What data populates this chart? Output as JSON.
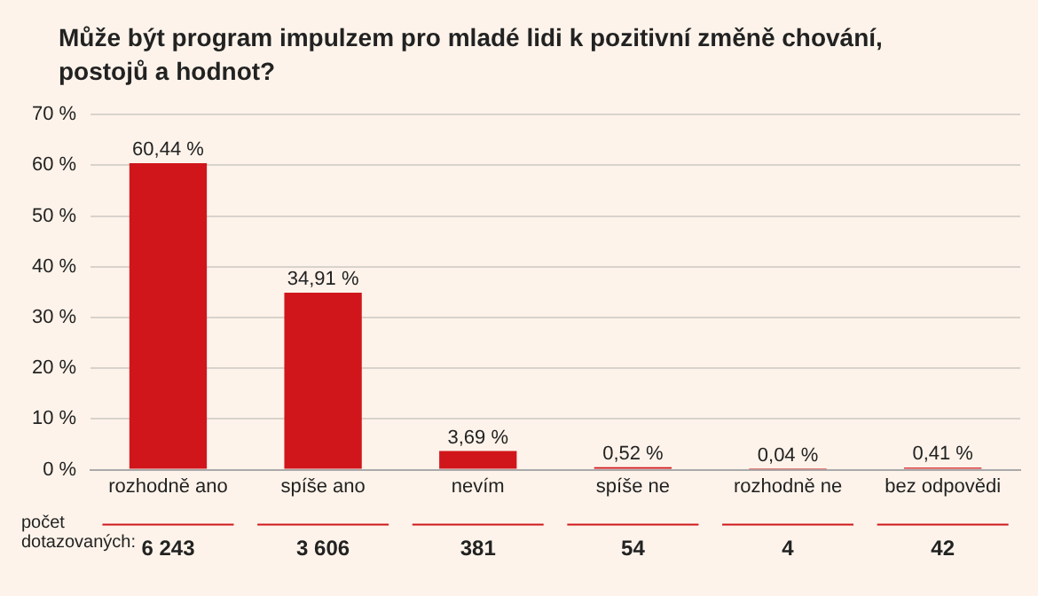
{
  "chart_data": {
    "type": "bar",
    "title": "Může být program impulzem pro mladé lidi k pozitivní změně chování, postojů a hodnot?",
    "categories": [
      "rozhodně ano",
      "spíše ano",
      "nevím",
      "spíše ne",
      "rozhodně ne",
      "bez odpovědi"
    ],
    "values": [
      60.44,
      34.91,
      3.69,
      0.52,
      0.04,
      0.41
    ],
    "value_labels": [
      "60,44 %",
      "34,91 %",
      "3,69 %",
      "0,52 %",
      "0,04 %",
      "0,41 %"
    ],
    "color": "#d0161b",
    "ylim": [
      0,
      70
    ],
    "yticks": [
      {
        "value": 0,
        "label": "0 %"
      },
      {
        "value": 10,
        "label": "10 %"
      },
      {
        "value": 20,
        "label": "20 %"
      },
      {
        "value": 30,
        "label": "30 %"
      },
      {
        "value": 40,
        "label": "40 %"
      },
      {
        "value": 50,
        "label": "50 %"
      },
      {
        "value": 60,
        "label": "60 %"
      },
      {
        "value": 70,
        "label": "70 %"
      }
    ],
    "grid": "y",
    "legend": false,
    "annotations": [
      "počet dotazovaných:",
      "6 243",
      "3 606",
      "381",
      "54",
      "4",
      "42"
    ]
  }
}
